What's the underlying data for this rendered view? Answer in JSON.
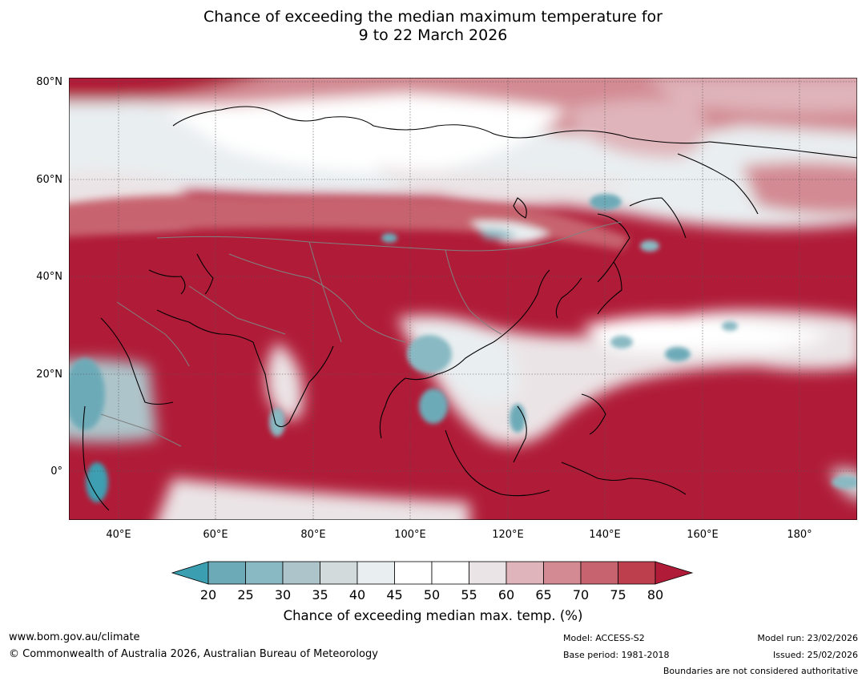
{
  "title": {
    "line1": "Chance of exceeding the median maximum temperature for",
    "line2": "9 to 22 March 2026"
  },
  "map": {
    "region": "Asia and Western Pacific",
    "lat_labels": [
      "80°N",
      "60°N",
      "40°N",
      "20°N",
      "0°"
    ],
    "lon_labels": [
      "40°E",
      "60°E",
      "80°E",
      "100°E",
      "120°E",
      "140°E",
      "160°E",
      "180°"
    ],
    "colors": {
      "deep_red": "#b01c38",
      "land_line": "#000000",
      "border_line": "#808080",
      "ocean_white": "#ffffff"
    }
  },
  "colorbar": {
    "ticks": [
      "20",
      "25",
      "30",
      "35",
      "40",
      "45",
      "50",
      "55",
      "60",
      "65",
      "70",
      "75",
      "80"
    ],
    "bin_colors": [
      "#3c9fb1",
      "#6daab8",
      "#89b9c3",
      "#adc5ca",
      "#d3dadc",
      "#e9eef0",
      "#ffffff",
      "#ffffff",
      "#ebe4e6",
      "#dfb4ba",
      "#d38a93",
      "#c7636e",
      "#bd3f4d",
      "#b01c38"
    ],
    "title": "Chance of exceeding median max. temp. (%)"
  },
  "footer": {
    "website": "www.bom.gov.au/climate",
    "copyright": "© Commonwealth of Australia 2026, Australian Bureau of Meteorology",
    "model": "Model: ACCESS-S2",
    "base_period": "Base period: 1981-2018",
    "model_run": "Model run: 23/02/2026",
    "issued": "Issued: 25/02/2026",
    "disclaimer": "Boundaries are not considered authoritative"
  }
}
